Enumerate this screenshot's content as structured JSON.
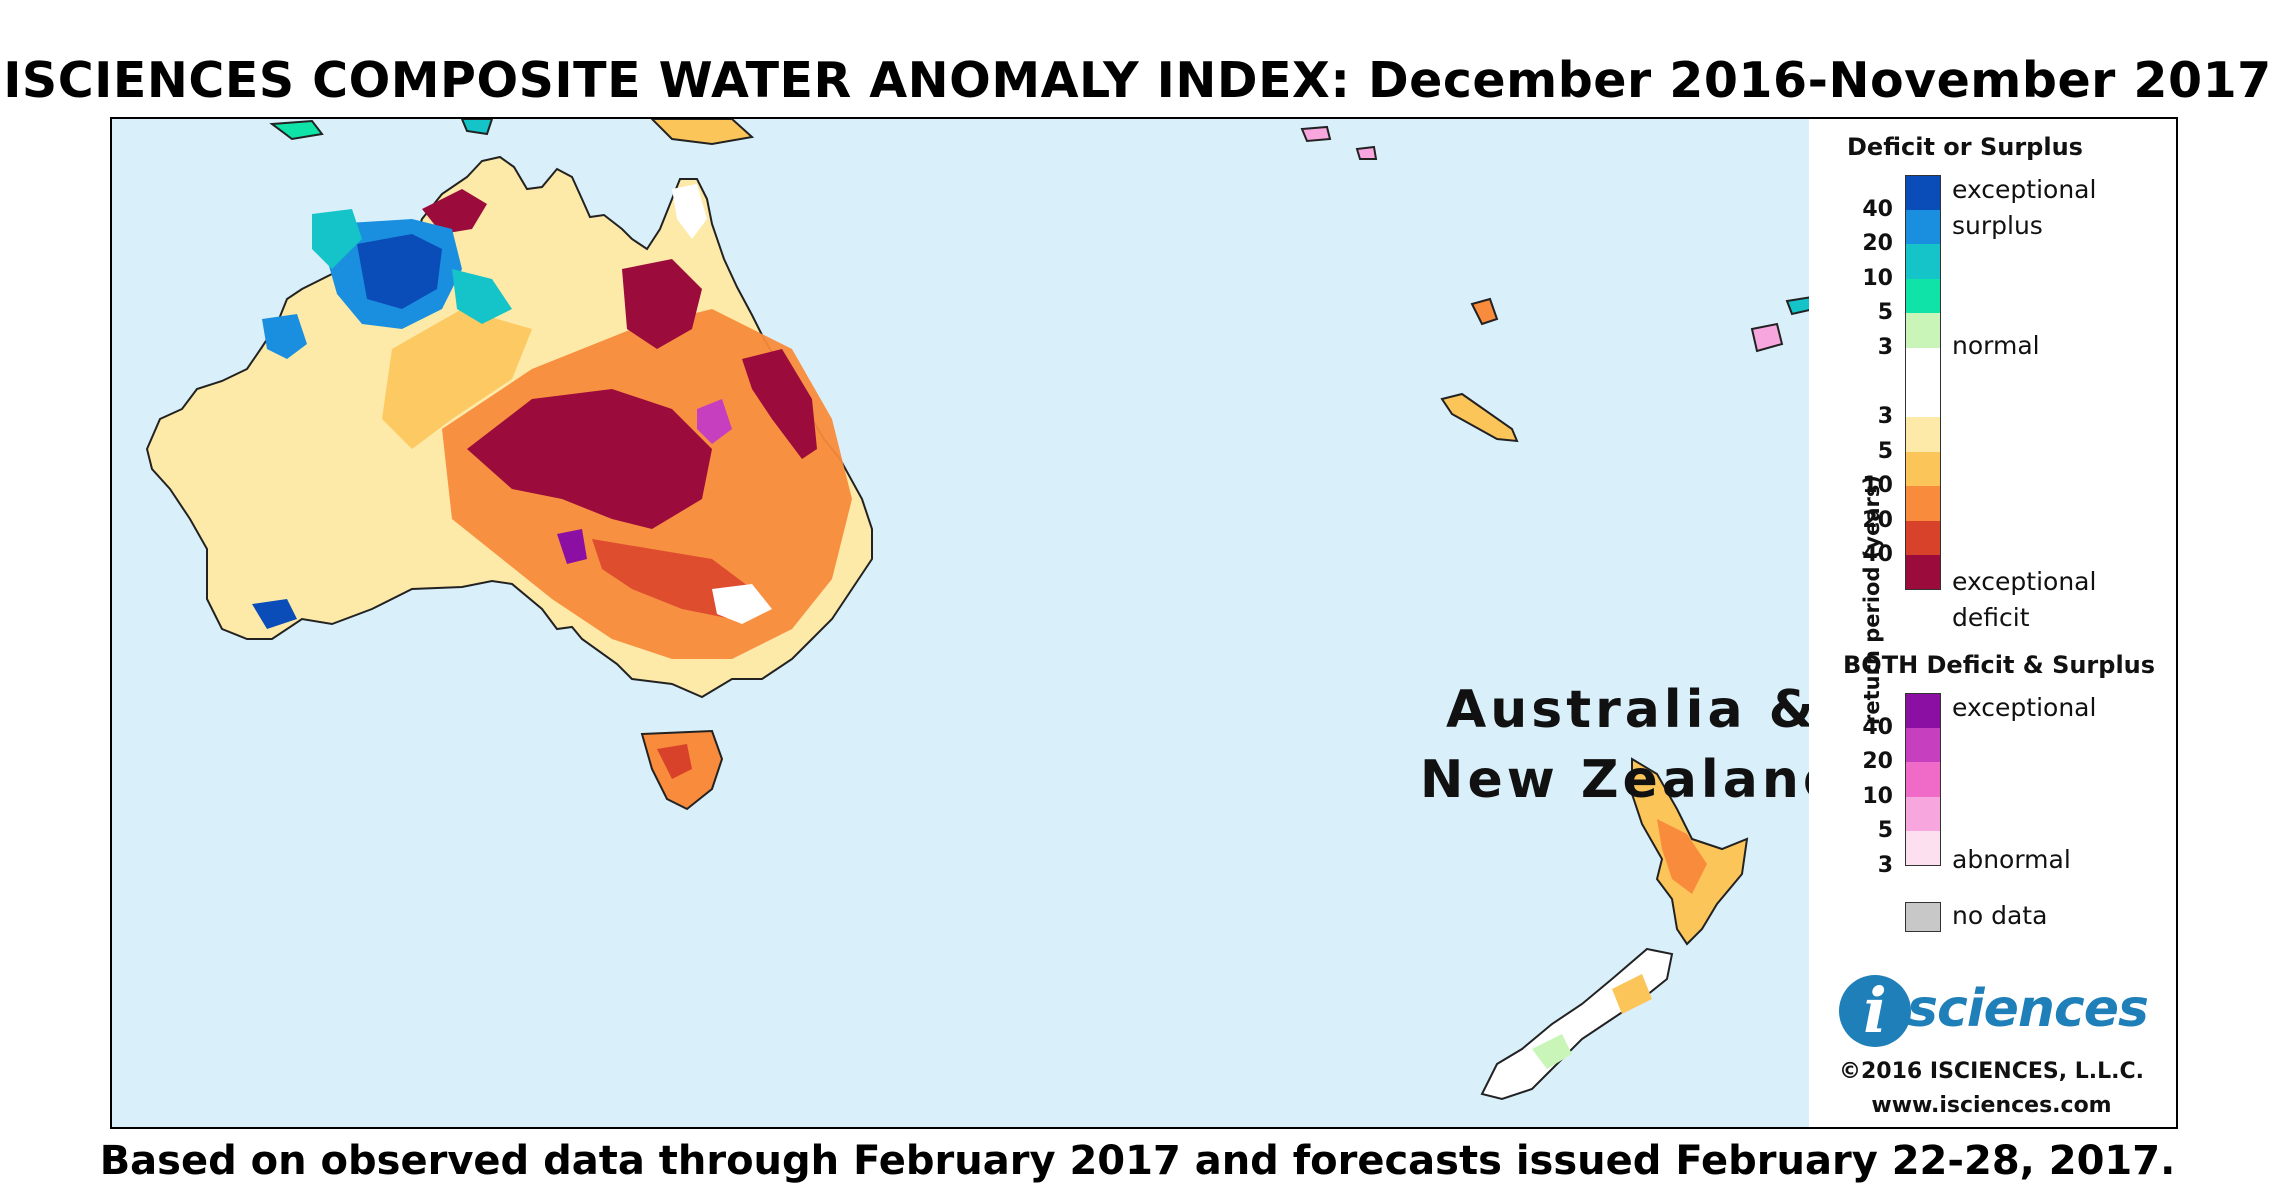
{
  "title": "ISCIENCES COMPOSITE WATER ANOMALY INDEX: December 2016-November 2017",
  "footer": "Based on observed data through February 2017 and forecasts issued February 22-28, 2017.",
  "region_label_line1": "Australia &",
  "region_label_line2": "New Zealand",
  "legend": {
    "deficit_surplus_heading": "Deficit or Surplus",
    "axis_title": "return period (years)",
    "surplus_top_label_1": "exceptional",
    "surplus_top_label_2": "surplus",
    "normal_label": "normal",
    "deficit_label_1": "exceptional",
    "deficit_label_2": "deficit",
    "surplus_ticks": [
      "40",
      "20",
      "10",
      "5",
      "3"
    ],
    "deficit_ticks": [
      "3",
      "5",
      "10",
      "20",
      "40"
    ],
    "surplus_colors": [
      "#0a4cb8",
      "#1a8fe0",
      "#15c4c8",
      "#10e3a8",
      "#c9f5b8"
    ],
    "normal_color": "#ffffff",
    "deficit_colors": [
      "#fde9a8",
      "#fcc55a",
      "#f88b3c",
      "#d9422a",
      "#9b0b3b"
    ],
    "both_heading": "BOTH Deficit & Surplus",
    "both_top_label": "exceptional",
    "both_bottom_label": "abnormal",
    "both_ticks": [
      "40",
      "20",
      "10",
      "5",
      "3"
    ],
    "both_colors": [
      "#8b0fa3",
      "#c53fbf",
      "#f06ac8",
      "#f8a6de",
      "#fde0f0"
    ],
    "no_data_label": "no data",
    "no_data_color": "#c8c8c8"
  },
  "logo": {
    "letter": "i",
    "word": "sciences"
  },
  "copyright": "©2016 ISCIENCES, L.L.C.",
  "website": "www.isciences.com",
  "colors": {
    "ocean": "#d9f0fb",
    "land_normal": "#fde9a8"
  }
}
